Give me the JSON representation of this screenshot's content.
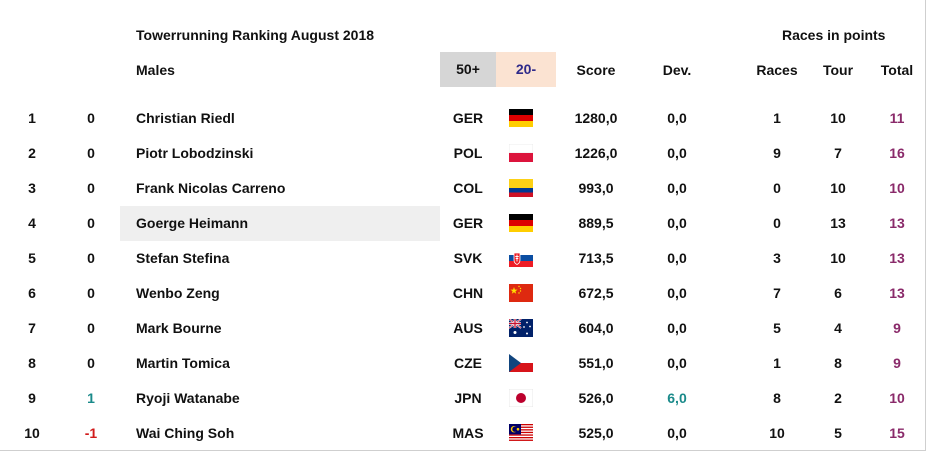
{
  "header": {
    "title": "Towerrunning Ranking August 2018",
    "races_in_points": "Races in points",
    "category": "Males",
    "filter_50": "50+",
    "filter_20": "20-",
    "col_score": "Score",
    "col_dev": "Dev.",
    "col_races": "Races",
    "col_tour": "Tour",
    "col_total": "Total"
  },
  "rows": [
    {
      "rank": "1",
      "change": "0",
      "name": "Christian Riedl",
      "country": "GER",
      "flag": "germany-flag-icon",
      "score": "1280,0",
      "dev": "0,0",
      "races": "1",
      "tour": "10",
      "total": "11"
    },
    {
      "rank": "2",
      "change": "0",
      "name": "Piotr Lobodzinski",
      "country": "POL",
      "flag": "poland-flag-icon",
      "score": "1226,0",
      "dev": "0,0",
      "races": "9",
      "tour": "7",
      "total": "16"
    },
    {
      "rank": "3",
      "change": "0",
      "name": "Frank Nicolas Carreno",
      "country": "COL",
      "flag": "colombia-flag-icon",
      "score": "993,0",
      "dev": "0,0",
      "races": "0",
      "tour": "10",
      "total": "10"
    },
    {
      "rank": "4",
      "change": "0",
      "name": "Goerge Heimann",
      "country": "GER",
      "flag": "germany-flag-icon",
      "score": "889,5",
      "dev": "0,0",
      "races": "0",
      "tour": "13",
      "total": "13"
    },
    {
      "rank": "5",
      "change": "0",
      "name": "Stefan Stefina",
      "country": "SVK",
      "flag": "slovakia-flag-icon",
      "score": "713,5",
      "dev": "0,0",
      "races": "3",
      "tour": "10",
      "total": "13"
    },
    {
      "rank": "6",
      "change": "0",
      "name": "Wenbo Zeng",
      "country": "CHN",
      "flag": "china-flag-icon",
      "score": "672,5",
      "dev": "0,0",
      "races": "7",
      "tour": "6",
      "total": "13"
    },
    {
      "rank": "7",
      "change": "0",
      "name": "Mark Bourne",
      "country": "AUS",
      "flag": "australia-flag-icon",
      "score": "604,0",
      "dev": "0,0",
      "races": "5",
      "tour": "4",
      "total": "9"
    },
    {
      "rank": "8",
      "change": "0",
      "name": "Martin Tomica",
      "country": "CZE",
      "flag": "czechia-flag-icon",
      "score": "551,0",
      "dev": "0,0",
      "races": "1",
      "tour": "8",
      "total": "9"
    },
    {
      "rank": "9",
      "change": "1",
      "name": "Ryoji Watanabe",
      "country": "JPN",
      "flag": "japan-flag-icon",
      "score": "526,0",
      "dev": "6,0",
      "races": "8",
      "tour": "2",
      "total": "10"
    },
    {
      "rank": "10",
      "change": "-1",
      "name": "Wai Ching Soh",
      "country": "MAS",
      "flag": "malaysia-flag-icon",
      "score": "525,0",
      "dev": "0,0",
      "races": "10",
      "tour": "5",
      "total": "15"
    }
  ],
  "highlighted_row": 3,
  "colors": {
    "filter_50_bg": "#d6d6d6",
    "filter_20_bg": "#fbe3d2",
    "filter_20_text": "#2e2a8a",
    "total_text": "#8a2a6a",
    "positive_text": "#1a8a8a",
    "negative_text": "#d11a1a",
    "highlight_bg": "#efefef"
  }
}
